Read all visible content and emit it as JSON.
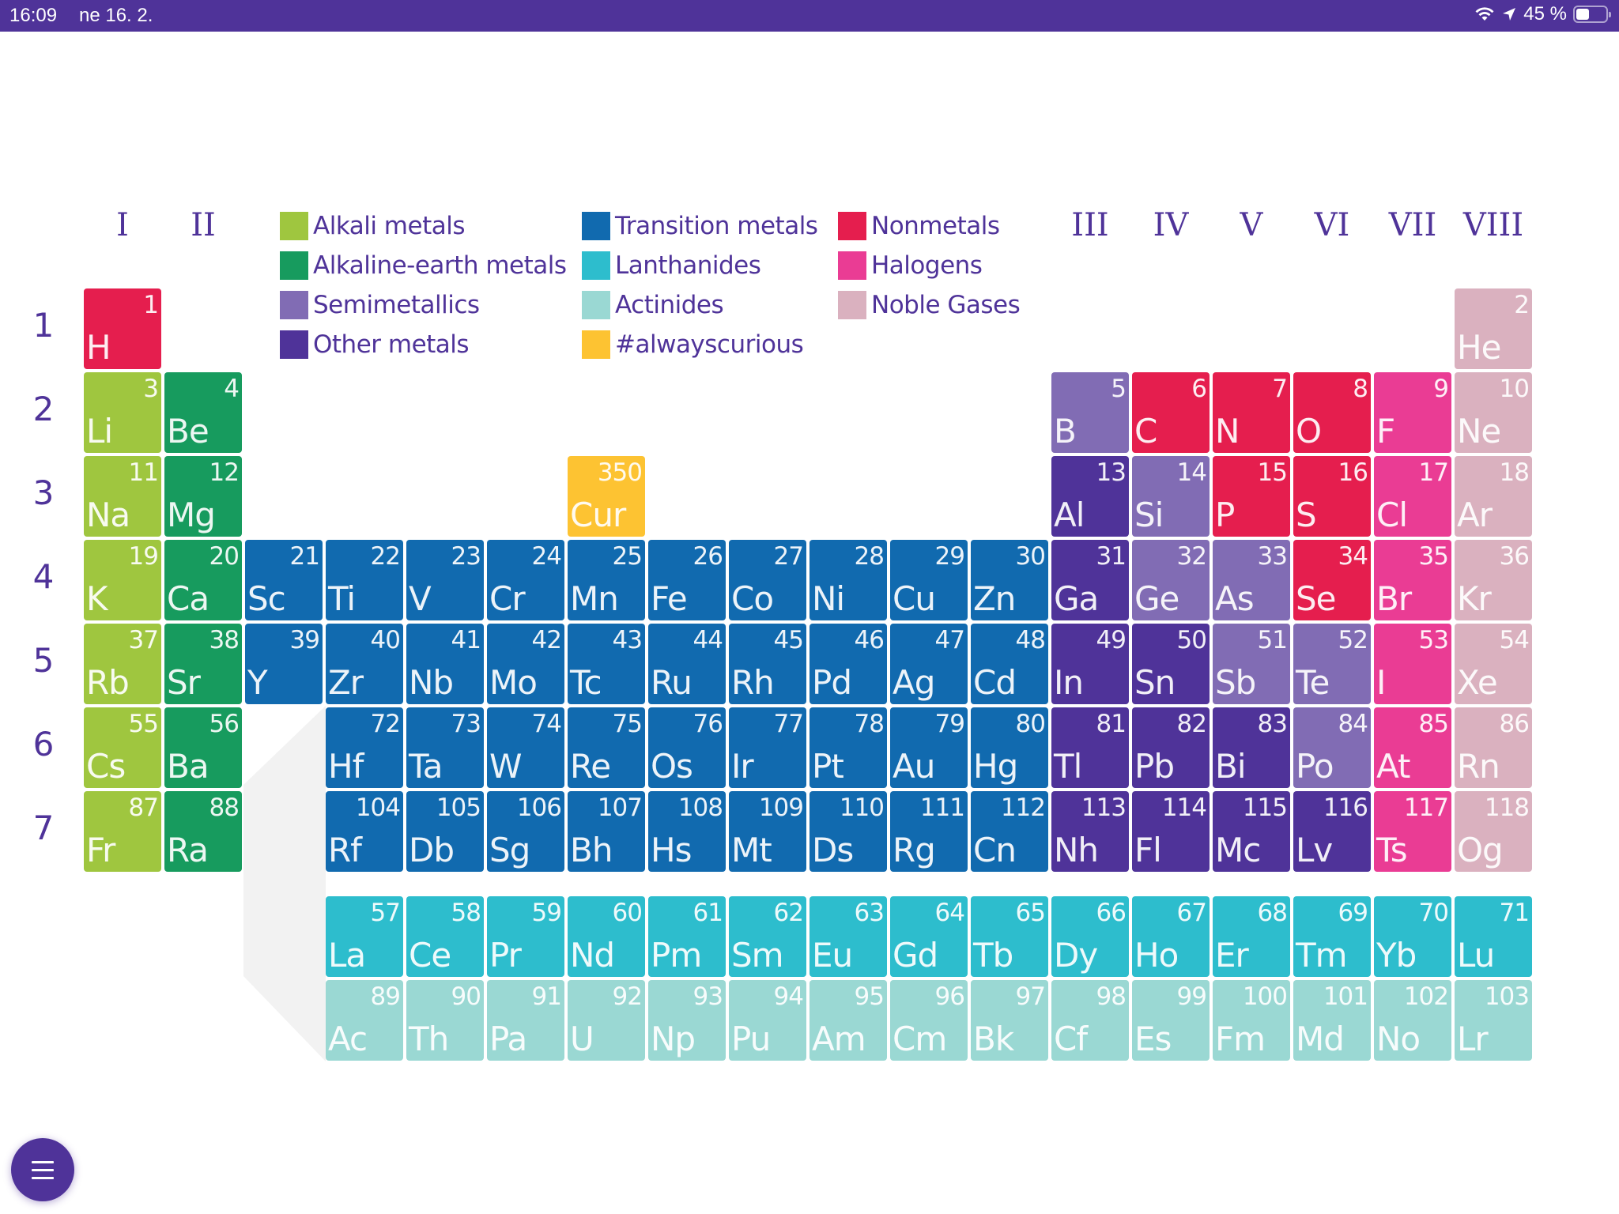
{
  "status_bar": {
    "time": "16:09",
    "date": "ne 16. 2.",
    "battery_percent": "45 %",
    "icons": [
      "wifi-icon",
      "location-arrow-icon",
      "battery-icon"
    ]
  },
  "colors": {
    "alkali": "#9fc63f",
    "alkaline": "#179b5e",
    "semi": "#816cb4",
    "other": "#4f3399",
    "transition": "#116aaf",
    "lanthanide": "#2dbdcd",
    "actinide": "#9ad8d3",
    "curious": "#fdc332",
    "nonmetal": "#e51e4e",
    "halogen": "#ea3c94",
    "noble": "#dab1bf",
    "accent": "#4f3399"
  },
  "group_labels": [
    {
      "label": "I",
      "col": 0
    },
    {
      "label": "II",
      "col": 1
    },
    {
      "label": "III",
      "col": 12
    },
    {
      "label": "IV",
      "col": 13
    },
    {
      "label": "V",
      "col": 14
    },
    {
      "label": "VI",
      "col": 15
    },
    {
      "label": "VII",
      "col": 16
    },
    {
      "label": "VIII",
      "col": 17
    }
  ],
  "period_labels": [
    "1",
    "2",
    "3",
    "4",
    "5",
    "6",
    "7"
  ],
  "legend": [
    {
      "label": "Alkali metals",
      "cat": "alkali"
    },
    {
      "label": "Alkaline-earth metals",
      "cat": "alkaline"
    },
    {
      "label": "Semimetallics",
      "cat": "semi"
    },
    {
      "label": "Other metals",
      "cat": "other"
    },
    {
      "label": "Transition metals",
      "cat": "transition"
    },
    {
      "label": "Lanthanides",
      "cat": "lanthanide"
    },
    {
      "label": "Actinides",
      "cat": "actinide"
    },
    {
      "label": "#alwayscurious",
      "cat": "curious"
    },
    {
      "label": "Nonmetals",
      "cat": "nonmetal"
    },
    {
      "label": "Halogens",
      "cat": "halogen"
    },
    {
      "label": "Noble Gases",
      "cat": "noble"
    }
  ],
  "elements": [
    {
      "n": "1",
      "s": "H",
      "c": 0,
      "r": 0,
      "cat": "nonmetal"
    },
    {
      "n": "2",
      "s": "He",
      "c": 17,
      "r": 0,
      "cat": "noble"
    },
    {
      "n": "3",
      "s": "Li",
      "c": 0,
      "r": 1,
      "cat": "alkali"
    },
    {
      "n": "4",
      "s": "Be",
      "c": 1,
      "r": 1,
      "cat": "alkaline"
    },
    {
      "n": "5",
      "s": "B",
      "c": 12,
      "r": 1,
      "cat": "semi"
    },
    {
      "n": "6",
      "s": "C",
      "c": 13,
      "r": 1,
      "cat": "nonmetal"
    },
    {
      "n": "7",
      "s": "N",
      "c": 14,
      "r": 1,
      "cat": "nonmetal"
    },
    {
      "n": "8",
      "s": "O",
      "c": 15,
      "r": 1,
      "cat": "nonmetal"
    },
    {
      "n": "9",
      "s": "F",
      "c": 16,
      "r": 1,
      "cat": "halogen"
    },
    {
      "n": "10",
      "s": "Ne",
      "c": 17,
      "r": 1,
      "cat": "noble"
    },
    {
      "n": "11",
      "s": "Na",
      "c": 0,
      "r": 2,
      "cat": "alkali"
    },
    {
      "n": "12",
      "s": "Mg",
      "c": 1,
      "r": 2,
      "cat": "alkaline"
    },
    {
      "n": "350",
      "s": "Cur",
      "c": 6,
      "r": 2,
      "cat": "curious"
    },
    {
      "n": "13",
      "s": "Al",
      "c": 12,
      "r": 2,
      "cat": "other"
    },
    {
      "n": "14",
      "s": "Si",
      "c": 13,
      "r": 2,
      "cat": "semi"
    },
    {
      "n": "15",
      "s": "P",
      "c": 14,
      "r": 2,
      "cat": "nonmetal"
    },
    {
      "n": "16",
      "s": "S",
      "c": 15,
      "r": 2,
      "cat": "nonmetal"
    },
    {
      "n": "17",
      "s": "Cl",
      "c": 16,
      "r": 2,
      "cat": "halogen"
    },
    {
      "n": "18",
      "s": "Ar",
      "c": 17,
      "r": 2,
      "cat": "noble"
    },
    {
      "n": "19",
      "s": "K",
      "c": 0,
      "r": 3,
      "cat": "alkali"
    },
    {
      "n": "20",
      "s": "Ca",
      "c": 1,
      "r": 3,
      "cat": "alkaline"
    },
    {
      "n": "21",
      "s": "Sc",
      "c": 2,
      "r": 3,
      "cat": "transition"
    },
    {
      "n": "22",
      "s": "Ti",
      "c": 3,
      "r": 3,
      "cat": "transition"
    },
    {
      "n": "23",
      "s": "V",
      "c": 4,
      "r": 3,
      "cat": "transition"
    },
    {
      "n": "24",
      "s": "Cr",
      "c": 5,
      "r": 3,
      "cat": "transition"
    },
    {
      "n": "25",
      "s": "Mn",
      "c": 6,
      "r": 3,
      "cat": "transition"
    },
    {
      "n": "26",
      "s": "Fe",
      "c": 7,
      "r": 3,
      "cat": "transition"
    },
    {
      "n": "27",
      "s": "Co",
      "c": 8,
      "r": 3,
      "cat": "transition"
    },
    {
      "n": "28",
      "s": "Ni",
      "c": 9,
      "r": 3,
      "cat": "transition"
    },
    {
      "n": "29",
      "s": "Cu",
      "c": 10,
      "r": 3,
      "cat": "transition"
    },
    {
      "n": "30",
      "s": "Zn",
      "c": 11,
      "r": 3,
      "cat": "transition"
    },
    {
      "n": "31",
      "s": "Ga",
      "c": 12,
      "r": 3,
      "cat": "other"
    },
    {
      "n": "32",
      "s": "Ge",
      "c": 13,
      "r": 3,
      "cat": "semi"
    },
    {
      "n": "33",
      "s": "As",
      "c": 14,
      "r": 3,
      "cat": "semi"
    },
    {
      "n": "34",
      "s": "Se",
      "c": 15,
      "r": 3,
      "cat": "nonmetal"
    },
    {
      "n": "35",
      "s": "Br",
      "c": 16,
      "r": 3,
      "cat": "halogen"
    },
    {
      "n": "36",
      "s": "Kr",
      "c": 17,
      "r": 3,
      "cat": "noble"
    },
    {
      "n": "37",
      "s": "Rb",
      "c": 0,
      "r": 4,
      "cat": "alkali"
    },
    {
      "n": "38",
      "s": "Sr",
      "c": 1,
      "r": 4,
      "cat": "alkaline"
    },
    {
      "n": "39",
      "s": "Y",
      "c": 2,
      "r": 4,
      "cat": "transition"
    },
    {
      "n": "40",
      "s": "Zr",
      "c": 3,
      "r": 4,
      "cat": "transition"
    },
    {
      "n": "41",
      "s": "Nb",
      "c": 4,
      "r": 4,
      "cat": "transition"
    },
    {
      "n": "42",
      "s": "Mo",
      "c": 5,
      "r": 4,
      "cat": "transition"
    },
    {
      "n": "43",
      "s": "Tc",
      "c": 6,
      "r": 4,
      "cat": "transition"
    },
    {
      "n": "44",
      "s": "Ru",
      "c": 7,
      "r": 4,
      "cat": "transition"
    },
    {
      "n": "45",
      "s": "Rh",
      "c": 8,
      "r": 4,
      "cat": "transition"
    },
    {
      "n": "46",
      "s": "Pd",
      "c": 9,
      "r": 4,
      "cat": "transition"
    },
    {
      "n": "47",
      "s": "Ag",
      "c": 10,
      "r": 4,
      "cat": "transition"
    },
    {
      "n": "48",
      "s": "Cd",
      "c": 11,
      "r": 4,
      "cat": "transition"
    },
    {
      "n": "49",
      "s": "In",
      "c": 12,
      "r": 4,
      "cat": "other"
    },
    {
      "n": "50",
      "s": "Sn",
      "c": 13,
      "r": 4,
      "cat": "other"
    },
    {
      "n": "51",
      "s": "Sb",
      "c": 14,
      "r": 4,
      "cat": "semi"
    },
    {
      "n": "52",
      "s": "Te",
      "c": 15,
      "r": 4,
      "cat": "semi"
    },
    {
      "n": "53",
      "s": "I",
      "c": 16,
      "r": 4,
      "cat": "halogen"
    },
    {
      "n": "54",
      "s": "Xe",
      "c": 17,
      "r": 4,
      "cat": "noble"
    },
    {
      "n": "55",
      "s": "Cs",
      "c": 0,
      "r": 5,
      "cat": "alkali"
    },
    {
      "n": "56",
      "s": "Ba",
      "c": 1,
      "r": 5,
      "cat": "alkaline"
    },
    {
      "n": "72",
      "s": "Hf",
      "c": 3,
      "r": 5,
      "cat": "transition"
    },
    {
      "n": "73",
      "s": "Ta",
      "c": 4,
      "r": 5,
      "cat": "transition"
    },
    {
      "n": "74",
      "s": "W",
      "c": 5,
      "r": 5,
      "cat": "transition"
    },
    {
      "n": "75",
      "s": "Re",
      "c": 6,
      "r": 5,
      "cat": "transition"
    },
    {
      "n": "76",
      "s": "Os",
      "c": 7,
      "r": 5,
      "cat": "transition"
    },
    {
      "n": "77",
      "s": "Ir",
      "c": 8,
      "r": 5,
      "cat": "transition"
    },
    {
      "n": "78",
      "s": "Pt",
      "c": 9,
      "r": 5,
      "cat": "transition"
    },
    {
      "n": "79",
      "s": "Au",
      "c": 10,
      "r": 5,
      "cat": "transition"
    },
    {
      "n": "80",
      "s": "Hg",
      "c": 11,
      "r": 5,
      "cat": "transition"
    },
    {
      "n": "81",
      "s": "Tl",
      "c": 12,
      "r": 5,
      "cat": "other"
    },
    {
      "n": "82",
      "s": "Pb",
      "c": 13,
      "r": 5,
      "cat": "other"
    },
    {
      "n": "83",
      "s": "Bi",
      "c": 14,
      "r": 5,
      "cat": "other"
    },
    {
      "n": "84",
      "s": "Po",
      "c": 15,
      "r": 5,
      "cat": "semi"
    },
    {
      "n": "85",
      "s": "At",
      "c": 16,
      "r": 5,
      "cat": "halogen"
    },
    {
      "n": "86",
      "s": "Rn",
      "c": 17,
      "r": 5,
      "cat": "noble"
    },
    {
      "n": "87",
      "s": "Fr",
      "c": 0,
      "r": 6,
      "cat": "alkali"
    },
    {
      "n": "88",
      "s": "Ra",
      "c": 1,
      "r": 6,
      "cat": "alkaline"
    },
    {
      "n": "104",
      "s": "Rf",
      "c": 3,
      "r": 6,
      "cat": "transition"
    },
    {
      "n": "105",
      "s": "Db",
      "c": 4,
      "r": 6,
      "cat": "transition"
    },
    {
      "n": "106",
      "s": "Sg",
      "c": 5,
      "r": 6,
      "cat": "transition"
    },
    {
      "n": "107",
      "s": "Bh",
      "c": 6,
      "r": 6,
      "cat": "transition"
    },
    {
      "n": "108",
      "s": "Hs",
      "c": 7,
      "r": 6,
      "cat": "transition"
    },
    {
      "n": "109",
      "s": "Mt",
      "c": 8,
      "r": 6,
      "cat": "transition"
    },
    {
      "n": "110",
      "s": "Ds",
      "c": 9,
      "r": 6,
      "cat": "transition"
    },
    {
      "n": "111",
      "s": "Rg",
      "c": 10,
      "r": 6,
      "cat": "transition"
    },
    {
      "n": "112",
      "s": "Cn",
      "c": 11,
      "r": 6,
      "cat": "transition"
    },
    {
      "n": "113",
      "s": "Nh",
      "c": 12,
      "r": 6,
      "cat": "other"
    },
    {
      "n": "114",
      "s": "Fl",
      "c": 13,
      "r": 6,
      "cat": "other"
    },
    {
      "n": "115",
      "s": "Mc",
      "c": 14,
      "r": 6,
      "cat": "other"
    },
    {
      "n": "116",
      "s": "Lv",
      "c": 15,
      "r": 6,
      "cat": "other"
    },
    {
      "n": "117",
      "s": "Ts",
      "c": 16,
      "r": 6,
      "cat": "halogen"
    },
    {
      "n": "118",
      "s": "Og",
      "c": 17,
      "r": 6,
      "cat": "noble"
    },
    {
      "n": "57",
      "s": "La",
      "c": 3,
      "r": 8,
      "cat": "lanthanide"
    },
    {
      "n": "58",
      "s": "Ce",
      "c": 4,
      "r": 8,
      "cat": "lanthanide"
    },
    {
      "n": "59",
      "s": "Pr",
      "c": 5,
      "r": 8,
      "cat": "lanthanide"
    },
    {
      "n": "60",
      "s": "Nd",
      "c": 6,
      "r": 8,
      "cat": "lanthanide"
    },
    {
      "n": "61",
      "s": "Pm",
      "c": 7,
      "r": 8,
      "cat": "lanthanide"
    },
    {
      "n": "62",
      "s": "Sm",
      "c": 8,
      "r": 8,
      "cat": "lanthanide"
    },
    {
      "n": "63",
      "s": "Eu",
      "c": 9,
      "r": 8,
      "cat": "lanthanide"
    },
    {
      "n": "64",
      "s": "Gd",
      "c": 10,
      "r": 8,
      "cat": "lanthanide"
    },
    {
      "n": "65",
      "s": "Tb",
      "c": 11,
      "r": 8,
      "cat": "lanthanide"
    },
    {
      "n": "66",
      "s": "Dy",
      "c": 12,
      "r": 8,
      "cat": "lanthanide"
    },
    {
      "n": "67",
      "s": "Ho",
      "c": 13,
      "r": 8,
      "cat": "lanthanide"
    },
    {
      "n": "68",
      "s": "Er",
      "c": 14,
      "r": 8,
      "cat": "lanthanide"
    },
    {
      "n": "69",
      "s": "Tm",
      "c": 15,
      "r": 8,
      "cat": "lanthanide"
    },
    {
      "n": "70",
      "s": "Yb",
      "c": 16,
      "r": 8,
      "cat": "lanthanide"
    },
    {
      "n": "71",
      "s": "Lu",
      "c": 17,
      "r": 8,
      "cat": "lanthanide"
    },
    {
      "n": "89",
      "s": "Ac",
      "c": 3,
      "r": 9,
      "cat": "actinide"
    },
    {
      "n": "90",
      "s": "Th",
      "c": 4,
      "r": 9,
      "cat": "actinide"
    },
    {
      "n": "91",
      "s": "Pa",
      "c": 5,
      "r": 9,
      "cat": "actinide"
    },
    {
      "n": "92",
      "s": "U",
      "c": 6,
      "r": 9,
      "cat": "actinide"
    },
    {
      "n": "93",
      "s": "Np",
      "c": 7,
      "r": 9,
      "cat": "actinide"
    },
    {
      "n": "94",
      "s": "Pu",
      "c": 8,
      "r": 9,
      "cat": "actinide"
    },
    {
      "n": "95",
      "s": "Am",
      "c": 9,
      "r": 9,
      "cat": "actinide"
    },
    {
      "n": "96",
      "s": "Cm",
      "c": 10,
      "r": 9,
      "cat": "actinide"
    },
    {
      "n": "97",
      "s": "Bk",
      "c": 11,
      "r": 9,
      "cat": "actinide"
    },
    {
      "n": "98",
      "s": "Cf",
      "c": 12,
      "r": 9,
      "cat": "actinide"
    },
    {
      "n": "99",
      "s": "Es",
      "c": 13,
      "r": 9,
      "cat": "actinide"
    },
    {
      "n": "100",
      "s": "Fm",
      "c": 14,
      "r": 9,
      "cat": "actinide"
    },
    {
      "n": "101",
      "s": "Md",
      "c": 15,
      "r": 9,
      "cat": "actinide"
    },
    {
      "n": "102",
      "s": "No",
      "c": 16,
      "r": 9,
      "cat": "actinide"
    },
    {
      "n": "103",
      "s": "Lr",
      "c": 17,
      "r": 9,
      "cat": "actinide"
    }
  ],
  "menu_button": {
    "icon": "hamburger-menu-icon"
  }
}
